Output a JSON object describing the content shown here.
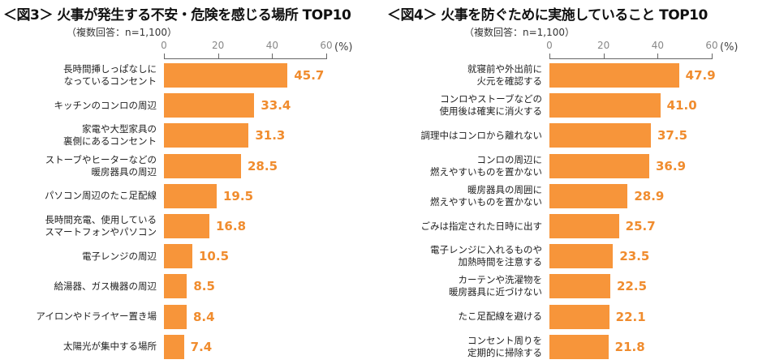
{
  "chart_data": [
    {
      "type": "bar",
      "orientation": "horizontal",
      "title": "＜図3＞ 火事が発生する不安・危険を感じる場所 TOP10",
      "subtitle": "（複数回答：n=1,100）",
      "unit": "(%)",
      "xlim": [
        0,
        60
      ],
      "ticks": [
        "0",
        "20",
        "40",
        "60"
      ],
      "categories": [
        "長時間挿しっぱなしに\nなっているコンセント",
        "キッチンのコンロの周辺",
        "家電や大型家具の\n裏側にあるコンセント",
        "ストーブやヒーターなどの\n暖房器具の周辺",
        "パソコン周辺のたこ足配線",
        "長時間充電、使用している\nスマートフォンやパソコン",
        "電子レンジの周辺",
        "給湯器、ガス機器の周辺",
        "アイロンやドライヤー置き場",
        "太陽光が集中する場所"
      ],
      "values": [
        45.7,
        33.4,
        31.3,
        28.5,
        19.5,
        16.8,
        10.5,
        8.5,
        8.4,
        7.4
      ]
    },
    {
      "type": "bar",
      "orientation": "horizontal",
      "title": "＜図4＞ 火事を防ぐために実施していること TOP10",
      "subtitle": "（複数回答：n=1,100）",
      "unit": "(%)",
      "xlim": [
        0,
        60
      ],
      "ticks": [
        "0",
        "20",
        "40",
        "60"
      ],
      "categories": [
        "就寝前や外出前に\n火元を確認する",
        "コンロやストーブなどの\n使用後は確実に消火する",
        "調理中はコンロから離れない",
        "コンロの周辺に\n燃えやすいものを置かない",
        "暖房器具の周囲に\n燃えやすいものを置かない",
        "ごみは指定された日時に出す",
        "電子レンジに入れるものや\n加熱時間を注意する",
        "カーテンや洗濯物を\n暖房器具に近づけない",
        "たこ足配線を避ける",
        "コンセント周りを\n定期的に掃除する"
      ],
      "values": [
        47.9,
        41.0,
        37.5,
        36.9,
        28.9,
        25.7,
        23.5,
        22.5,
        22.1,
        21.8
      ]
    }
  ],
  "colors": {
    "bar": "#F7953A",
    "value": "#F08C2E"
  }
}
